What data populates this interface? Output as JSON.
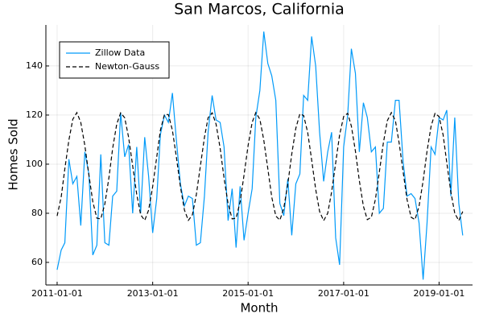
{
  "chart_data": {
    "type": "line",
    "title": "San Marcos, California",
    "x_label": "Month",
    "y_label": "Homes Sold",
    "x": [
      "2011-01-01",
      "2011-02-01",
      "2011-03-01",
      "2011-04-01",
      "2011-05-01",
      "2011-06-01",
      "2011-07-01",
      "2011-08-01",
      "2011-09-01",
      "2011-10-01",
      "2011-11-01",
      "2011-12-01",
      "2012-01-01",
      "2012-02-01",
      "2012-03-01",
      "2012-04-01",
      "2012-05-01",
      "2012-06-01",
      "2012-07-01",
      "2012-08-01",
      "2012-09-01",
      "2012-10-01",
      "2012-11-01",
      "2012-12-01",
      "2013-01-01",
      "2013-02-01",
      "2013-03-01",
      "2013-04-01",
      "2013-05-01",
      "2013-06-01",
      "2013-07-01",
      "2013-08-01",
      "2013-09-01",
      "2013-10-01",
      "2013-11-01",
      "2013-12-01",
      "2014-01-01",
      "2014-02-01",
      "2014-03-01",
      "2014-04-01",
      "2014-05-01",
      "2014-06-01",
      "2014-07-01",
      "2014-08-01",
      "2014-09-01",
      "2014-10-01",
      "2014-11-01",
      "2014-12-01",
      "2015-01-01",
      "2015-02-01",
      "2015-03-01",
      "2015-04-01",
      "2015-05-01",
      "2015-06-01",
      "2015-07-01",
      "2015-08-01",
      "2015-09-01",
      "2015-10-01",
      "2015-11-01",
      "2015-12-01",
      "2016-01-01",
      "2016-02-01",
      "2016-03-01",
      "2016-04-01",
      "2016-05-01",
      "2016-06-01",
      "2016-07-01",
      "2016-08-01",
      "2016-09-01",
      "2016-10-01",
      "2016-11-01",
      "2016-12-01",
      "2017-01-01",
      "2017-02-01",
      "2017-03-01",
      "2017-04-01",
      "2017-05-01",
      "2017-06-01",
      "2017-07-01",
      "2017-08-01",
      "2017-09-01",
      "2017-10-01",
      "2017-11-01",
      "2017-12-01",
      "2018-01-01",
      "2018-02-01",
      "2018-03-01",
      "2018-04-01",
      "2018-05-01",
      "2018-06-01",
      "2018-07-01",
      "2018-08-01",
      "2018-09-01",
      "2018-10-01",
      "2018-11-01",
      "2018-12-01",
      "2019-01-01",
      "2019-02-01",
      "2019-03-01",
      "2019-04-01",
      "2019-05-01",
      "2019-06-01",
      "2019-07-01"
    ],
    "series": [
      {
        "name": "Zillow Data",
        "color": "#009af9",
        "linestyle": "solid",
        "values": [
          57,
          65,
          68,
          102,
          92,
          95,
          75,
          105,
          96,
          63,
          67,
          104,
          68,
          67,
          87,
          89,
          121,
          103,
          108,
          80,
          107,
          80,
          111,
          95,
          72,
          86,
          112,
          120,
          117,
          129,
          110,
          92,
          83,
          87,
          86,
          67,
          68,
          87,
          113,
          128,
          118,
          117,
          107,
          77,
          90,
          66,
          91,
          69,
          80,
          90,
          119,
          130,
          154,
          141,
          136,
          126,
          84,
          79,
          94,
          71,
          92,
          96,
          128,
          126,
          152,
          140,
          113,
          93,
          105,
          113,
          70,
          59,
          107,
          120,
          147,
          137,
          105,
          125,
          119,
          105,
          107,
          80,
          82,
          109,
          109,
          126,
          126,
          101,
          87,
          88,
          86,
          76,
          53,
          76,
          107,
          104,
          119,
          118,
          122,
          87,
          119,
          84,
          71
        ]
      },
      {
        "name": "Newton-Gauss",
        "color": "#000000",
        "linestyle": "dashed",
        "values": [
          78.9,
          86.6,
          98.1,
          109.8,
          118.3,
          121.0,
          117.0,
          107.6,
          95.6,
          84.7,
          78.0,
          77.7,
          83.8,
          94.4,
          106.5,
          116.3,
          120.9,
          118.9,
          110.9,
          99.3,
          87.7,
          79.4,
          77.1,
          81.3,
          90.9,
          102.9,
          113.8,
          120.2,
          120.2,
          113.8,
          103.0,
          90.9,
          81.3,
          77.1,
          79.4,
          87.6,
          99.3,
          110.9,
          118.9,
          120.9,
          116.3,
          106.5,
          94.4,
          83.8,
          77.7,
          78.0,
          84.7,
          95.6,
          107.6,
          117.0,
          121.0,
          118.3,
          109.8,
          98.1,
          86.6,
          78.9,
          77.2,
          82.1,
          92.0,
          104.1,
          114.6,
          120.5,
          119.8,
          112.9,
          101.8,
          89.8,
          80.7,
          77.0,
          80.0,
          88.7,
          100.5,
          111.9,
          119.4,
          120.7,
          115.5,
          105.3,
          93.3,
          82.9,
          77.4,
          78.4,
          85.7,
          96.8,
          108.7,
          117.7,
          121.0,
          117.7,
          108.8,
          96.9,
          85.6,
          78.4,
          77.4,
          82.9,
          93.2,
          105.3,
          115.5,
          120.7,
          119.4,
          111.9,
          100.6,
          88.7,
          80.0,
          77.0,
          80.7
        ]
      }
    ],
    "xlim": [
      "2010-10-07",
      "2019-09-14"
    ],
    "xticks": [
      "2011-01-01",
      "2013-01-01",
      "2015-01-01",
      "2017-01-01",
      "2019-01-01"
    ],
    "ylim": [
      50.8,
      156.7
    ],
    "yticks": [
      60,
      80,
      100,
      120,
      140
    ],
    "grid": true,
    "legend": "top-left"
  }
}
